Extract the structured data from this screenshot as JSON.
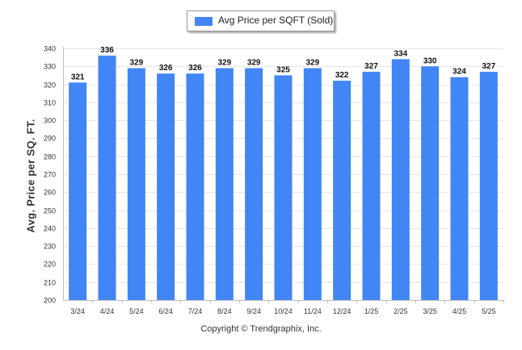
{
  "legend": {
    "label": "Avg Price per SQFT (Sold)"
  },
  "footer": {
    "copyright": "Copyright © Trendgraphix, Inc."
  },
  "colors": {
    "bar": "#4285f4",
    "grid": "#e6e6e6",
    "axis": "#bdbdbd"
  },
  "chart_data": {
    "type": "bar",
    "title": "",
    "xlabel": "",
    "ylabel": "Avg. Price per SQ. FT.",
    "categories": [
      "3/24",
      "4/24",
      "5/24",
      "6/24",
      "7/24",
      "8/24",
      "9/24",
      "10/24",
      "11/24",
      "12/24",
      "1/25",
      "2/25",
      "3/25",
      "4/25",
      "5/25"
    ],
    "series": [
      {
        "name": "Avg Price per SQFT (Sold)",
        "values": [
          321,
          336,
          329,
          326,
          326,
          329,
          329,
          325,
          329,
          322,
          327,
          334,
          330,
          324,
          327
        ]
      }
    ],
    "ylim": [
      200,
      340
    ],
    "yticks": [
      200,
      210,
      220,
      230,
      240,
      250,
      260,
      270,
      280,
      290,
      300,
      310,
      320,
      330,
      340
    ],
    "grid": true,
    "legend_position": "top-center"
  }
}
